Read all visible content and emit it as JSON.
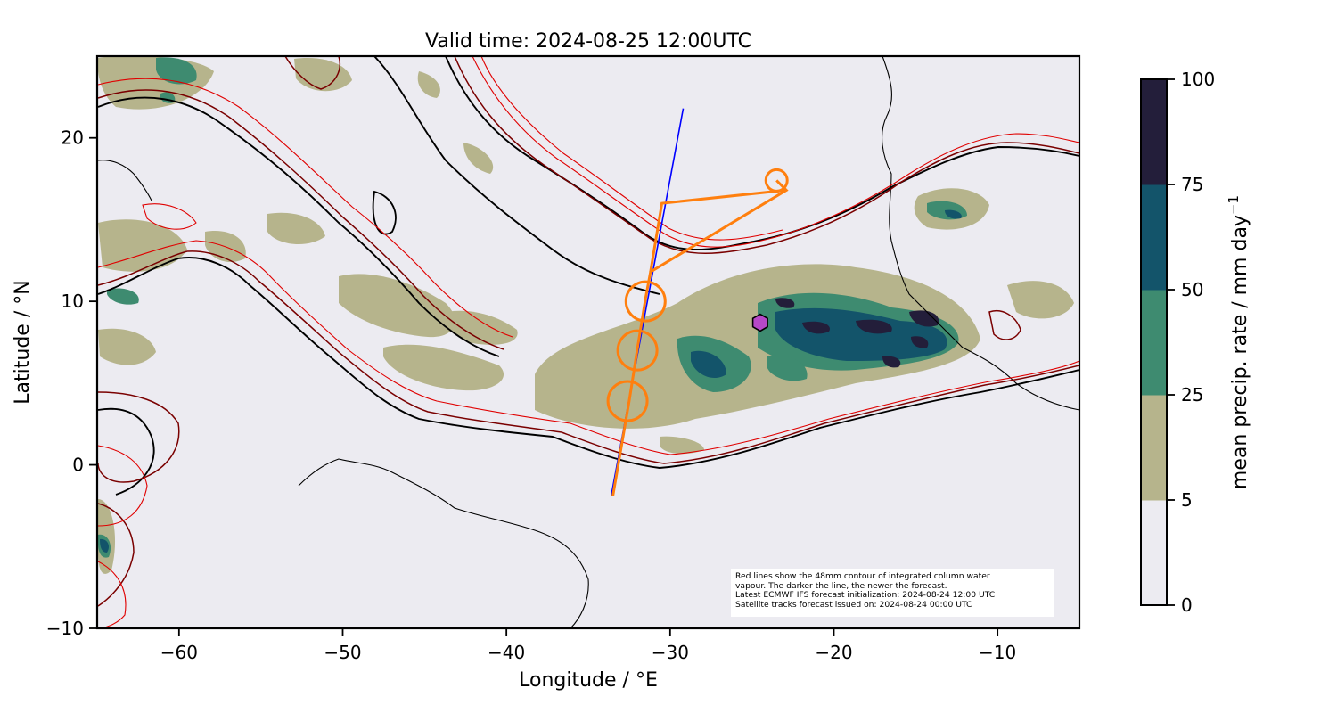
{
  "map": {
    "title": "Valid time: 2024-08-25 12:00UTC",
    "xlabel": "Longitude / °E",
    "ylabel": "Latitude / °N",
    "x_ticks": [
      -60,
      -50,
      -40,
      -30,
      -20,
      -10
    ],
    "x_tick_labels": [
      "−60",
      "−50",
      "−40",
      "−30",
      "−20",
      "−10"
    ],
    "y_ticks": [
      20,
      10,
      0,
      -10
    ],
    "y_tick_labels": [
      "20",
      "10",
      "0",
      "−10"
    ],
    "lon_range": [
      -65,
      -5
    ],
    "lat_range": [
      -10,
      25
    ],
    "background_color": "#ecebf1"
  },
  "colorbar": {
    "label": "mean precip. rate / mm day",
    "label_superscript": "−1",
    "levels": [
      0,
      5,
      25,
      50,
      75,
      100
    ],
    "tick_labels": [
      "0",
      "5",
      "25",
      "50",
      "75",
      "100"
    ],
    "colors": [
      "#ecebf1",
      "#b6b48c",
      "#3e8b70",
      "#13546a",
      "#231e3a"
    ]
  },
  "note": {
    "line1": "Red lines show the 48mm contour of integrated column water",
    "line2": "vapour. The darker the line, the newer the forecast.",
    "line3": "Latest ECMWF IFS forecast initialization: 2024-08-24 12:00 UTC",
    "line4": "Satellite tracks forecast issued on: 2024-08-24 00:00 UTC"
  },
  "overlays": {
    "flight_track_color": "#ff7f0e",
    "flight_track": [
      [
        -23.5,
        17.4
      ],
      [
        -22.9,
        16.8
      ],
      [
        -31.2,
        11.8
      ],
      [
        -31.5,
        10.2
      ],
      [
        -32.0,
        7.1
      ],
      [
        -32.5,
        3.9
      ],
      [
        -33.5,
        -1.9
      ]
    ],
    "flight_track_upper": [
      [
        -22.9,
        16.8
      ],
      [
        -30.5,
        16.0
      ],
      [
        -31.2,
        11.8
      ]
    ],
    "circles": [
      [
        -23.5,
        17.4
      ],
      [
        -31.5,
        10.0
      ],
      [
        -32.0,
        7.0
      ],
      [
        -32.6,
        3.9
      ]
    ],
    "satellite_track_color": "#0000ff",
    "satellite_track": [
      [
        -33.6,
        -1.9
      ],
      [
        -29.2,
        21.8
      ]
    ],
    "station_marker_color": "#b648c8",
    "station": [
      -24.5,
      8.7
    ]
  }
}
